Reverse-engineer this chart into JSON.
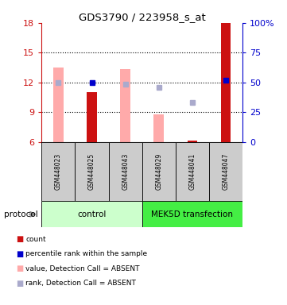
{
  "title": "GDS3790 / 223958_s_at",
  "samples": [
    "GSM448023",
    "GSM448025",
    "GSM448043",
    "GSM448029",
    "GSM448041",
    "GSM448047"
  ],
  "ylim_left": [
    6,
    18
  ],
  "ylim_right": [
    0,
    100
  ],
  "yticks_left": [
    6,
    9,
    12,
    15,
    18
  ],
  "yticks_right": [
    0,
    25,
    50,
    75,
    100
  ],
  "bar_values_pink": [
    13.5,
    null,
    13.3,
    8.8,
    null,
    null
  ],
  "bar_values_red": [
    null,
    11.0,
    null,
    null,
    6.15,
    18.0
  ],
  "dot_blue_dark_right": [
    null,
    50,
    null,
    null,
    null,
    52
  ],
  "dot_blue_light_left": [
    12.0,
    null,
    11.8,
    11.5,
    10.0,
    null
  ],
  "color_pink": "#ffaaaa",
  "color_red": "#cc1111",
  "color_blue_dark": "#0000cc",
  "color_blue_light": "#aaaacc",
  "bg_color": "#ffffff",
  "left_axis_color": "#cc1111",
  "right_axis_color": "#0000cc",
  "bar_width": 0.3,
  "dot_size": 5,
  "grid_dotted_at": [
    9,
    12,
    15
  ],
  "sample_box_color": "#cccccc",
  "group1_color": "#ccffcc",
  "group2_color": "#44ee44",
  "group1_label": "control",
  "group2_label": "MEK5D transfection",
  "protocol_label": "protocol",
  "legend": [
    {
      "color": "#cc1111",
      "label": "count"
    },
    {
      "color": "#0000cc",
      "label": "percentile rank within the sample"
    },
    {
      "color": "#ffaaaa",
      "label": "value, Detection Call = ABSENT"
    },
    {
      "color": "#aaaacc",
      "label": "rank, Detection Call = ABSENT"
    }
  ]
}
